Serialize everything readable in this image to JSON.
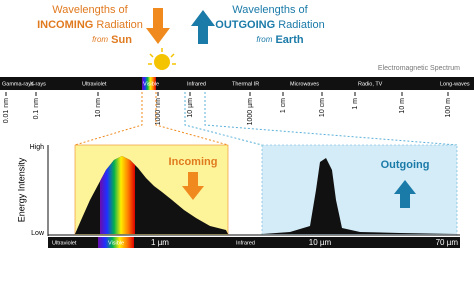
{
  "incoming": {
    "line1": "Wavelengths of",
    "emphasis": "INCOMING",
    "line2": "Radiation",
    "from": "from",
    "source": "Sun"
  },
  "outgoing": {
    "line1": "Wavelengths of",
    "emphasis": "OUTGOING",
    "line2": "Radiation",
    "from": "from",
    "source": "Earth"
  },
  "spectrum": {
    "title": "Electromagnetic Spectrum",
    "bands": [
      "Gamma-rays",
      "X-rays",
      "Ultraviolet",
      "Visible",
      "Infrared",
      "Thermal IR",
      "Microwaves",
      "Radio, TV",
      "Long-waves"
    ],
    "ticks": [
      "0.01 nm",
      "0.1 nm",
      "10 nm",
      "1000 nm",
      "10 µm",
      "1000 µm",
      "1 cm",
      "10 cm",
      "1 m",
      "10 m",
      "100 m"
    ]
  },
  "plot": {
    "y_high": "High",
    "y_low": "Low",
    "y_title": "Energy Intensity",
    "incoming_label": "Incoming",
    "outgoing_label": "Outgoing",
    "bottom_labels": [
      "Ultraviolet",
      "Visible",
      "1 µm",
      "Infrared",
      "10 µm",
      "70 µm"
    ]
  }
}
